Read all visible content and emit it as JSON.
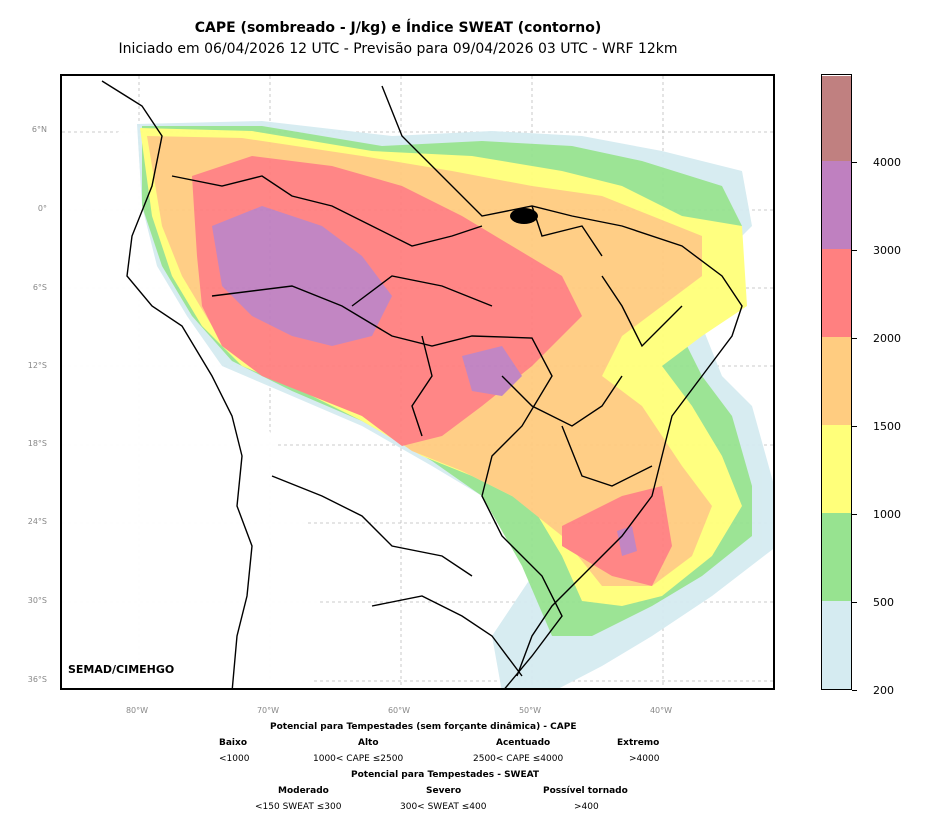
{
  "title": "CAPE (sombreado - J/kg) e Índice SWEAT (contorno)",
  "subtitle": "Iniciado em 06/04/2026 12 UTC - Previsão para 09/04/2026 03 UTC - WRF 12km",
  "credit": "SEMAD/CIMEHGO",
  "lat_labels": [
    "6°N",
    "0°",
    "6°S",
    "12°S",
    "18°S",
    "24°S",
    "30°S",
    "36°S"
  ],
  "lon_labels": [
    "80°W",
    "70°W",
    "60°W",
    "50°W",
    "40°W"
  ],
  "colorbar": {
    "ticks": [
      "200",
      "500",
      "1000",
      "1500",
      "2000",
      "3000",
      "4000"
    ],
    "levels": [
      200,
      500,
      1000,
      1500,
      2000,
      3000,
      4000,
      5000
    ],
    "colors": [
      "#d5ebf1",
      "#97e390",
      "#ffff7a",
      "#ffcc80",
      "#ff8080",
      "#bf80c0",
      "#c08080"
    ]
  },
  "legend": {
    "cape_title": "Potencial para Tempestades (sem forçante dinâmica) - CAPE",
    "cape_cols": [
      {
        "name": "Baixo",
        "range": "<1000"
      },
      {
        "name": "Alto",
        "range": "1000< CAPE ≤2500"
      },
      {
        "name": "Acentuado",
        "range": "2500< CAPE ≤4000"
      },
      {
        "name": "Extremo",
        "range": ">4000"
      }
    ],
    "sweat_title": "Potencial para Tempestades - SWEAT",
    "sweat_cols": [
      {
        "name": "Moderado",
        "range": "<150 SWEAT ≤300"
      },
      {
        "name": "Severo",
        "range": "300< SWEAT ≤400"
      },
      {
        "name": "Possível tornado",
        "range": ">400"
      }
    ]
  }
}
